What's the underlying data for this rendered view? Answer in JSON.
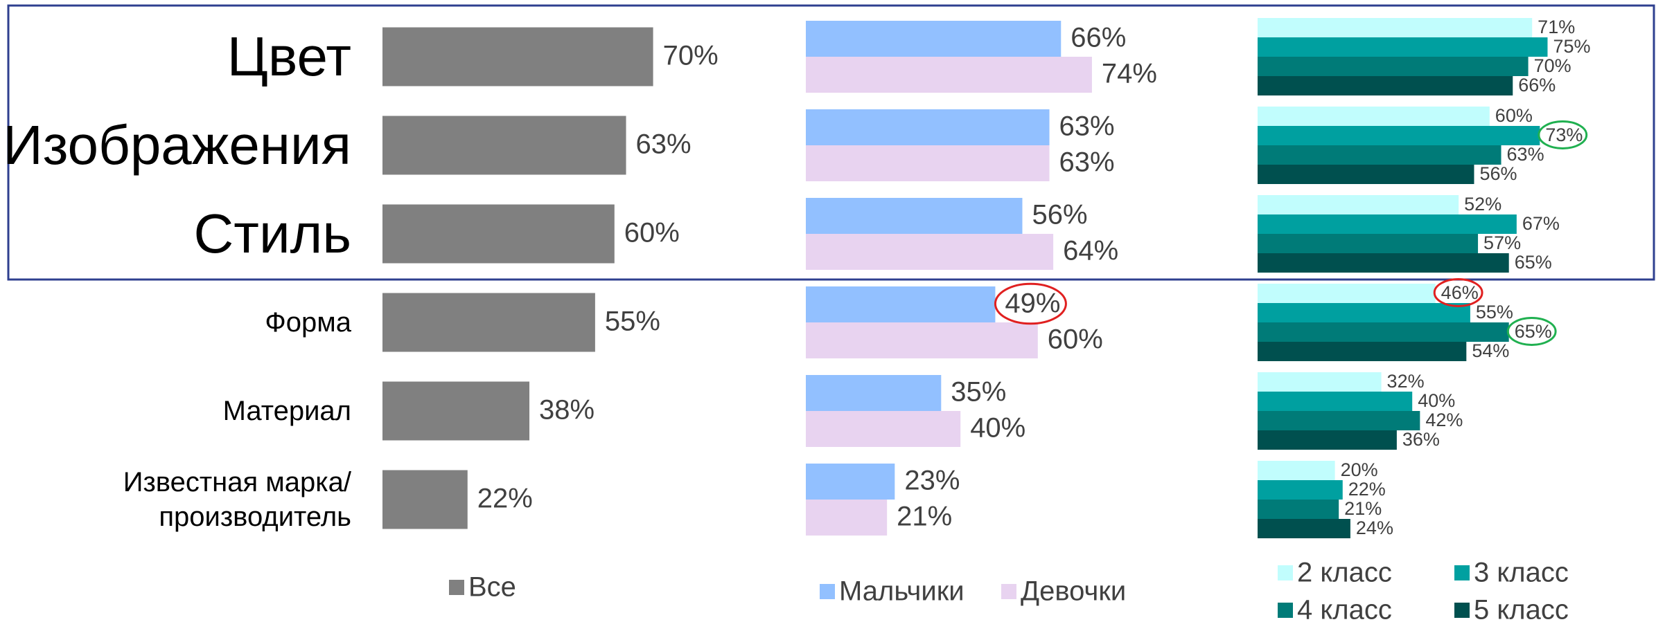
{
  "chart_data": [
    {
      "type": "bar",
      "orientation": "horizontal",
      "xlim": [
        0,
        100
      ],
      "legend": "bottom",
      "categories": [
        "Цвет",
        "Изображения",
        "Стиль",
        "Форма",
        "Материал",
        "Известная марка/\nпроизводитель"
      ],
      "series": [
        {
          "name": "Все",
          "color": "#808080",
          "values": [
            70,
            63,
            60,
            55,
            38,
            22
          ],
          "value_labels": [
            "70%",
            "63%",
            "60%",
            "55%",
            "38%",
            "22%"
          ]
        }
      ]
    },
    {
      "type": "bar",
      "orientation": "horizontal",
      "xlim": [
        0,
        100
      ],
      "legend": "bottom",
      "series": [
        {
          "name": "Мальчики",
          "color": "#92c0ff",
          "values": [
            66,
            63,
            56,
            49,
            35,
            23
          ],
          "value_labels": [
            "66%",
            "63%",
            "56%",
            "49%",
            "35%",
            "23%"
          ]
        },
        {
          "name": "Девочки",
          "color": "#e8d3f0",
          "values": [
            74,
            63,
            64,
            60,
            40,
            21
          ],
          "value_labels": [
            "74%",
            "63%",
            "64%",
            "60%",
            "40%",
            "21%"
          ]
        }
      ]
    },
    {
      "type": "bar",
      "orientation": "horizontal",
      "xlim": [
        0,
        100
      ],
      "legend": "bottom",
      "series": [
        {
          "name": "2 класс",
          "color": "#c1fdfd",
          "values": [
            71,
            60,
            52,
            46,
            32,
            20
          ],
          "value_labels": [
            "71%",
            "60%",
            "52%",
            "46%",
            "32%",
            "20%"
          ]
        },
        {
          "name": "3 класс",
          "color": "#00a0a0",
          "values": [
            75,
            73,
            67,
            55,
            40,
            22
          ],
          "value_labels": [
            "75%",
            "73%",
            "67%",
            "55%",
            "40%",
            "22%"
          ]
        },
        {
          "name": "4 класс",
          "color": "#007b78",
          "values": [
            70,
            63,
            57,
            65,
            42,
            21
          ],
          "value_labels": [
            "70%",
            "63%",
            "57%",
            "65%",
            "42%",
            "21%"
          ]
        },
        {
          "name": "5 класс",
          "color": "#00504f",
          "values": [
            66,
            56,
            65,
            54,
            36,
            24
          ],
          "value_labels": [
            "66%",
            "56%",
            "65%",
            "54%",
            "36%",
            "24%"
          ]
        }
      ]
    }
  ]
}
